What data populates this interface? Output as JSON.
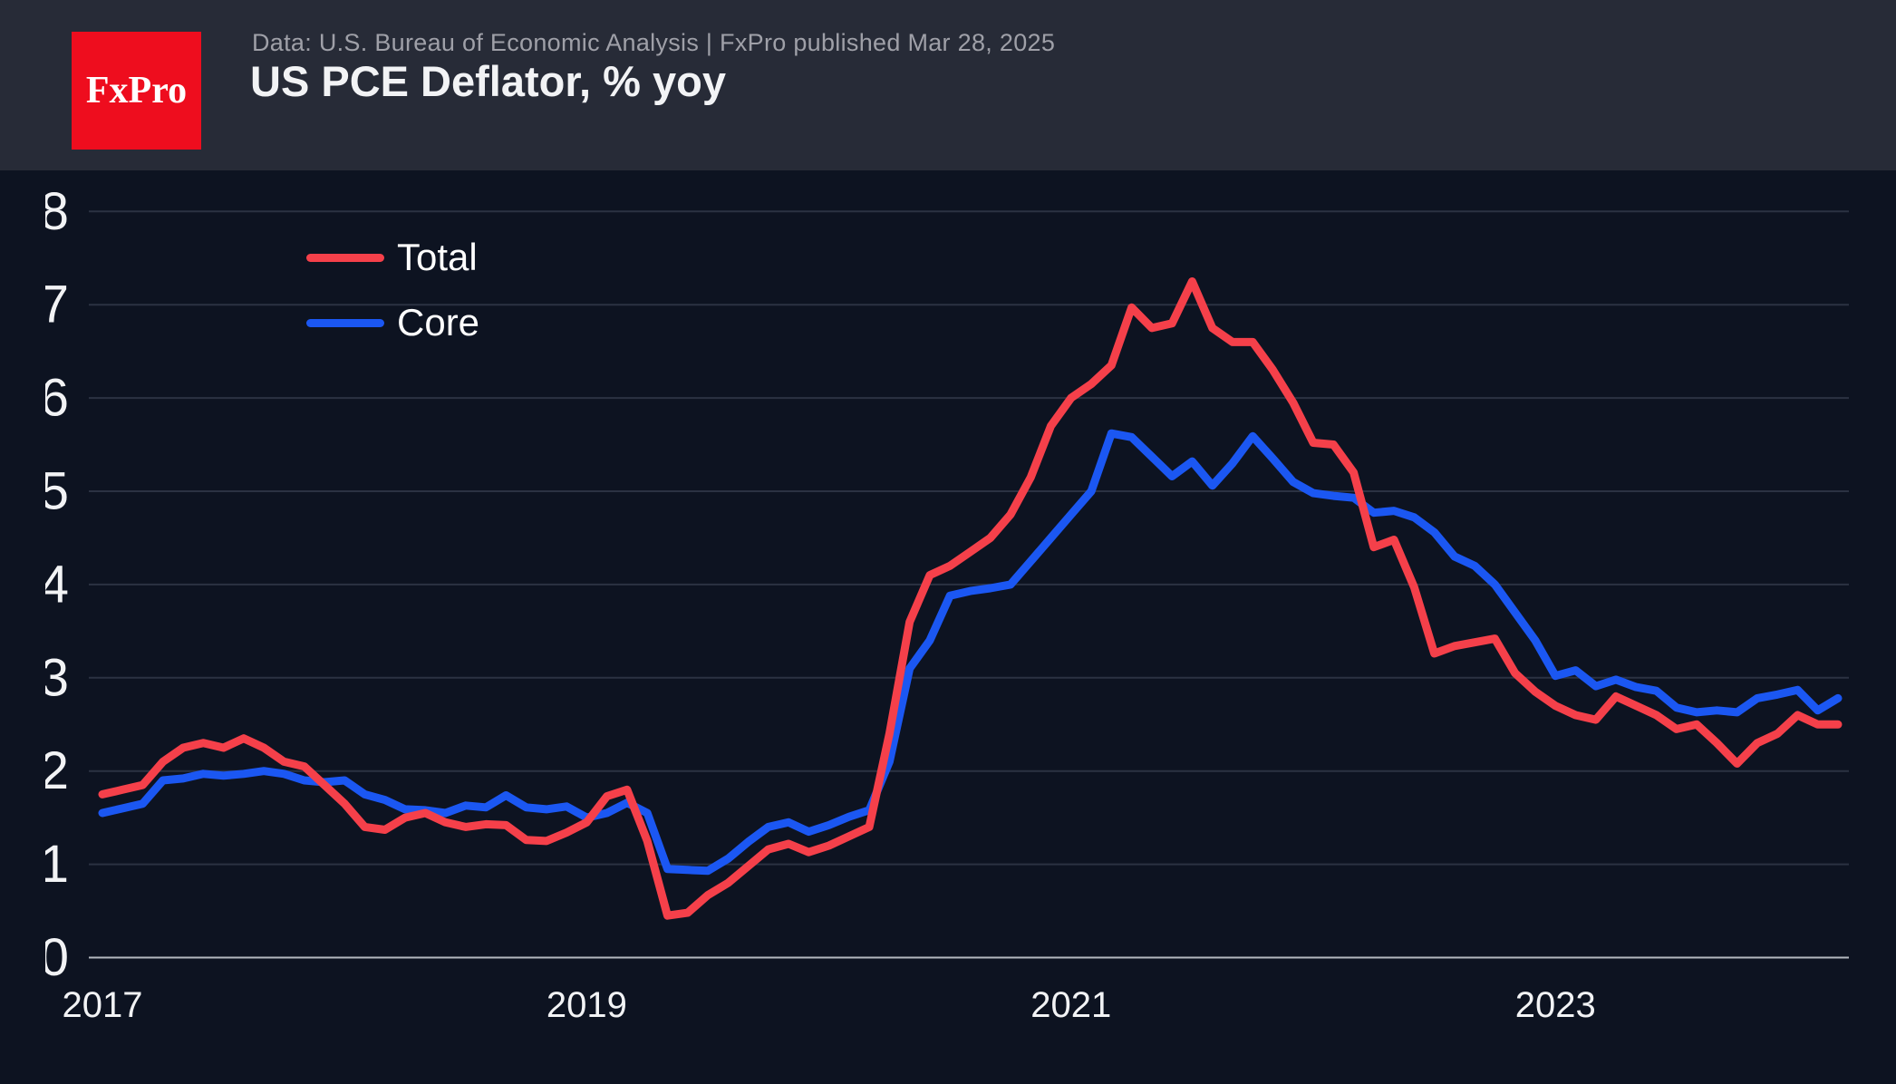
{
  "header": {
    "logo_text": "FxPro",
    "subtitle": "Data: U.S. Bureau of Economic Analysis | FxPro published Mar 28, 2025",
    "title": "US PCE Deflator, % yoy"
  },
  "colors": {
    "background": "#0d1321",
    "header_background": "#272b37",
    "brand_red": "#ee0d1e",
    "grid": "#2b3242",
    "axis": "#b4b8c0",
    "text_primary": "#f2f3f5",
    "text_muted": "#9fa0a8"
  },
  "chart_data": {
    "type": "line",
    "title": "US PCE Deflator, % yoy",
    "xlabel": "",
    "ylabel": "",
    "ylim": [
      0,
      8
    ],
    "grid": true,
    "legend_position": "top-left-inside",
    "months": [
      "2017-12",
      "2018-01",
      "2018-02",
      "2018-03",
      "2018-04",
      "2018-05",
      "2018-06",
      "2018-07",
      "2018-08",
      "2018-09",
      "2018-10",
      "2018-11",
      "2018-12",
      "2019-01",
      "2019-02",
      "2019-03",
      "2019-04",
      "2019-05",
      "2019-06",
      "2019-07",
      "2019-08",
      "2019-09",
      "2019-10",
      "2019-11",
      "2019-12",
      "2020-01",
      "2020-02",
      "2020-03",
      "2020-04",
      "2020-05",
      "2020-06",
      "2020-07",
      "2020-08",
      "2020-09",
      "2020-10",
      "2020-11",
      "2020-12",
      "2021-01",
      "2021-02",
      "2021-03",
      "2021-04",
      "2021-05",
      "2021-06",
      "2021-07",
      "2021-08",
      "2021-09",
      "2021-10",
      "2021-11",
      "2021-12",
      "2022-01",
      "2022-02",
      "2022-03",
      "2022-04",
      "2022-05",
      "2022-06",
      "2022-07",
      "2022-08",
      "2022-09",
      "2022-10",
      "2022-11",
      "2022-12",
      "2023-01",
      "2023-02",
      "2023-03",
      "2023-04",
      "2023-05",
      "2023-06",
      "2023-07",
      "2023-08",
      "2023-09",
      "2023-10",
      "2023-11",
      "2023-12",
      "2024-01",
      "2024-02",
      "2024-03",
      "2024-04",
      "2024-05",
      "2024-06",
      "2024-07",
      "2024-08",
      "2024-09",
      "2024-10",
      "2024-11",
      "2024-12",
      "2025-01",
      "2025-02"
    ],
    "series": [
      {
        "name": "Total",
        "color": "#f5404a",
        "values": [
          1.75,
          1.8,
          1.85,
          2.1,
          2.25,
          2.3,
          2.25,
          2.35,
          2.25,
          2.1,
          2.05,
          1.85,
          1.65,
          1.4,
          1.37,
          1.5,
          1.55,
          1.45,
          1.4,
          1.43,
          1.42,
          1.26,
          1.25,
          1.34,
          1.45,
          1.73,
          1.8,
          1.25,
          0.45,
          0.48,
          0.67,
          0.8,
          0.98,
          1.16,
          1.22,
          1.13,
          1.2,
          1.3,
          1.4,
          2.4,
          3.6,
          4.1,
          4.2,
          4.35,
          4.5,
          4.75,
          5.15,
          5.7,
          6.0,
          6.15,
          6.35,
          6.97,
          6.75,
          6.8,
          7.25,
          6.75,
          6.6,
          6.6,
          6.3,
          5.95,
          5.52,
          5.5,
          5.2,
          4.4,
          4.48,
          3.97,
          3.26,
          3.34,
          3.38,
          3.42,
          3.05,
          2.85,
          2.7,
          2.6,
          2.55,
          2.8,
          2.7,
          2.6,
          2.45,
          2.5,
          2.3,
          2.08,
          2.3,
          2.4,
          2.6,
          2.5,
          2.5
        ]
      },
      {
        "name": "Core",
        "color": "#1b57f2",
        "values": [
          1.55,
          1.6,
          1.65,
          1.9,
          1.92,
          1.97,
          1.95,
          1.97,
          2.0,
          1.97,
          1.9,
          1.88,
          1.9,
          1.75,
          1.69,
          1.59,
          1.58,
          1.55,
          1.63,
          1.61,
          1.74,
          1.61,
          1.59,
          1.62,
          1.5,
          1.55,
          1.66,
          1.55,
          0.95,
          0.94,
          0.93,
          1.06,
          1.24,
          1.4,
          1.45,
          1.35,
          1.42,
          1.51,
          1.58,
          2.1,
          3.1,
          3.4,
          3.88,
          3.93,
          3.96,
          4.0,
          4.25,
          4.5,
          4.75,
          5.0,
          5.62,
          5.58,
          5.37,
          5.16,
          5.32,
          5.06,
          5.3,
          5.59,
          5.35,
          5.1,
          4.98,
          4.95,
          4.93,
          4.77,
          4.79,
          4.72,
          4.56,
          4.3,
          4.2,
          4.0,
          3.7,
          3.4,
          3.02,
          3.08,
          2.91,
          2.98,
          2.9,
          2.86,
          2.68,
          2.63,
          2.65,
          2.63,
          2.78,
          2.82,
          2.87,
          2.65,
          2.78
        ]
      }
    ],
    "x_ticks": [
      {
        "month_index": 0,
        "label": "2017"
      },
      {
        "month_index": 24,
        "label": "2019"
      },
      {
        "month_index": 48,
        "label": "2021"
      },
      {
        "month_index": 72,
        "label": "2023"
      }
    ],
    "y_ticks": [
      "0",
      "1",
      "2",
      "3",
      "4",
      "5",
      "6",
      "7",
      "8"
    ]
  }
}
